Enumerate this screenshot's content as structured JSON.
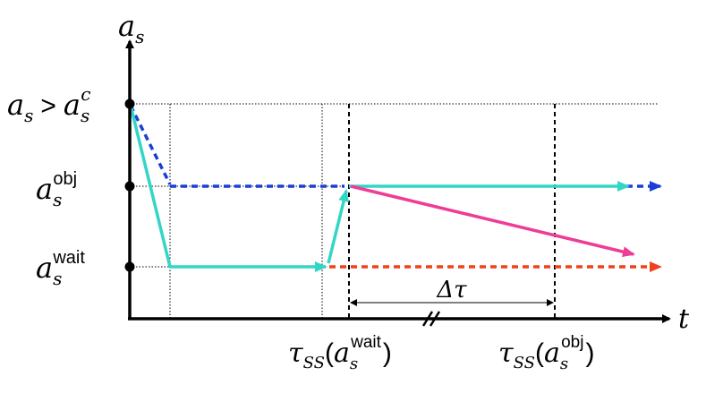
{
  "axes": {
    "y_symbol": "a",
    "y_symbol_sub": "s",
    "x_symbol": "t"
  },
  "levels": {
    "high": {
      "base": "a",
      "sub": "s",
      "op": ">",
      "rhs": "a",
      "rhs_sub": "s",
      "rhs_sup": "c"
    },
    "obj": {
      "base": "a",
      "sub": "s",
      "sup": "obj"
    },
    "wait": {
      "base": "a",
      "sub": "s",
      "sup": "wait"
    }
  },
  "ticks": {
    "tau_wait": {
      "tau": "τ",
      "tau_sub": "SS",
      "open": "(",
      "base": "a",
      "sub": "s",
      "sup": "wait",
      "close": ")"
    },
    "tau_obj": {
      "tau": "τ",
      "tau_sub": "SS",
      "open": "(",
      "base": "a",
      "sub": "s",
      "sup": "obj",
      "close": ")"
    }
  },
  "interval": {
    "label": "Δτ"
  },
  "colors": {
    "cyan": "#33d6c6",
    "blue": "#1a3fd6",
    "magenta": "#ee3d96",
    "red": "#f0411c",
    "axis": "#000000"
  }
}
